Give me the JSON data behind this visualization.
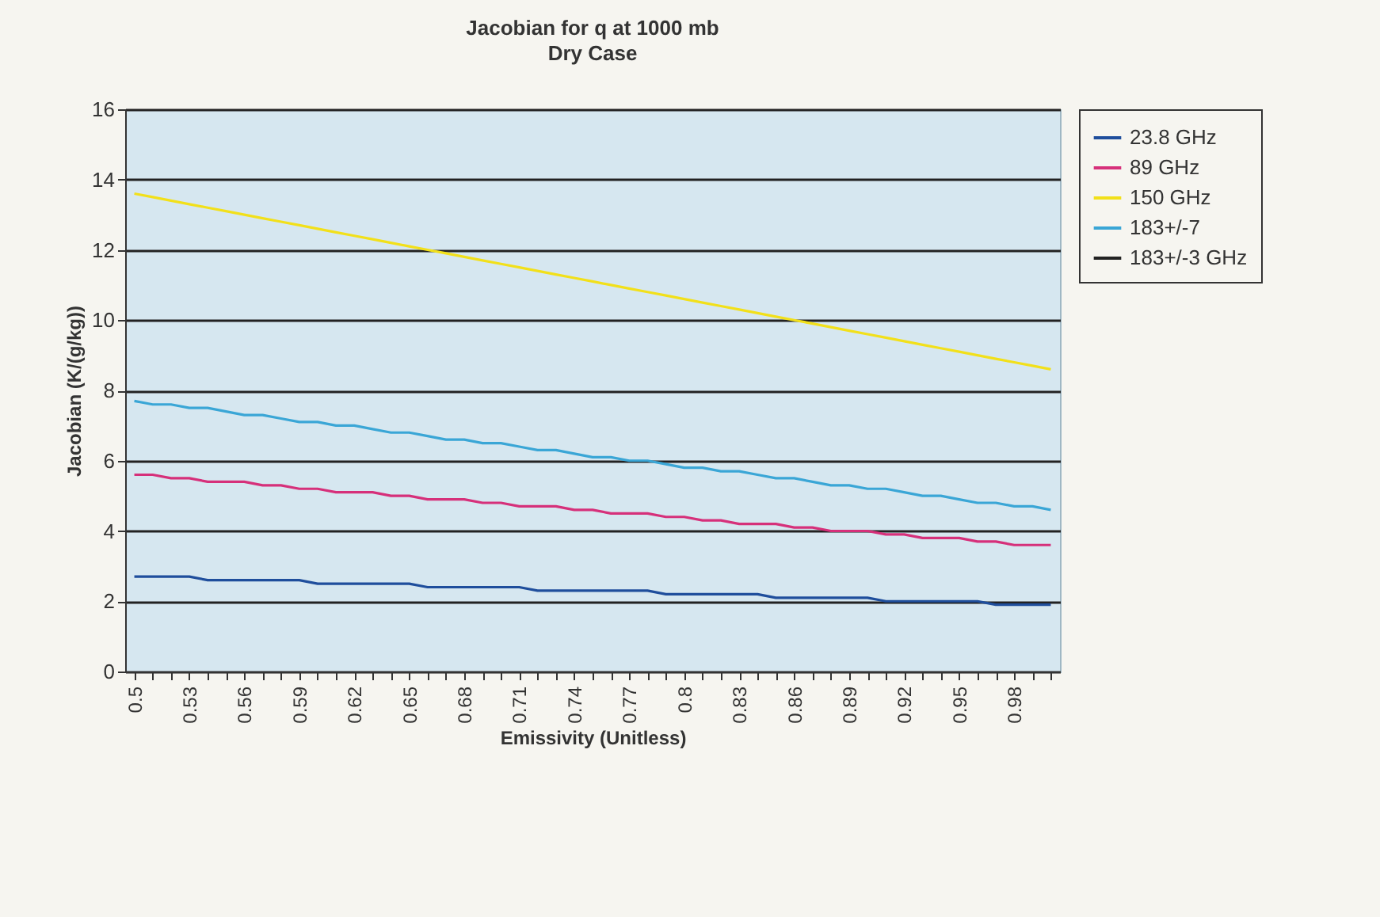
{
  "chart_data": {
    "type": "line",
    "title": "Jacobian for q at 1000 mb",
    "subtitle": "Dry Case",
    "xlabel": "Emissivity (Unitless)",
    "ylabel": "Jacobian (K/(g/kg))",
    "categories": [
      "0.5",
      null,
      null,
      "0.53",
      null,
      null,
      "0.56",
      null,
      null,
      "0.59",
      null,
      null,
      "0.62",
      null,
      null,
      "0.65",
      null,
      null,
      "0.68",
      null,
      null,
      "0.71",
      null,
      null,
      "0.74",
      null,
      null,
      "0.77",
      null,
      null,
      "0.8",
      null,
      null,
      "0.83",
      null,
      null,
      "0.86",
      null,
      null,
      "0.89",
      null,
      null,
      "0.92",
      null,
      null,
      "0.95",
      null,
      null,
      "0.98",
      null,
      null
    ],
    "series": [
      {
        "name": "23.8 GHz",
        "color": "#1f4e9c",
        "values": [
          2.7,
          2.7,
          2.7,
          2.7,
          2.6,
          2.6,
          2.6,
          2.6,
          2.6,
          2.6,
          2.5,
          2.5,
          2.5,
          2.5,
          2.5,
          2.5,
          2.4,
          2.4,
          2.4,
          2.4,
          2.4,
          2.4,
          2.3,
          2.3,
          2.3,
          2.3,
          2.3,
          2.3,
          2.3,
          2.2,
          2.2,
          2.2,
          2.2,
          2.2,
          2.2,
          2.1,
          2.1,
          2.1,
          2.1,
          2.1,
          2.1,
          2.0,
          2.0,
          2.0,
          2.0,
          2.0,
          2.0,
          1.9,
          1.9,
          1.9,
          1.9
        ]
      },
      {
        "name": "89 GHz",
        "color": "#d6307a",
        "values": [
          5.6,
          5.6,
          5.5,
          5.5,
          5.4,
          5.4,
          5.4,
          5.3,
          5.3,
          5.2,
          5.2,
          5.1,
          5.1,
          5.1,
          5.0,
          5.0,
          4.9,
          4.9,
          4.9,
          4.8,
          4.8,
          4.7,
          4.7,
          4.7,
          4.6,
          4.6,
          4.5,
          4.5,
          4.5,
          4.4,
          4.4,
          4.3,
          4.3,
          4.2,
          4.2,
          4.2,
          4.1,
          4.1,
          4.0,
          4.0,
          4.0,
          3.9,
          3.9,
          3.8,
          3.8,
          3.8,
          3.7,
          3.7,
          3.6,
          3.6,
          3.6
        ]
      },
      {
        "name": "150 GHz",
        "color": "#f2e01a",
        "values": [
          13.6,
          13.5,
          13.4,
          13.3,
          13.2,
          13.1,
          13.0,
          12.9,
          12.8,
          12.7,
          12.6,
          12.5,
          12.4,
          12.3,
          12.2,
          12.1,
          12.0,
          11.9,
          11.8,
          11.7,
          11.6,
          11.5,
          11.4,
          11.3,
          11.2,
          11.1,
          11.0,
          10.9,
          10.8,
          10.7,
          10.6,
          10.5,
          10.4,
          10.3,
          10.2,
          10.1,
          10.0,
          9.9,
          9.8,
          9.7,
          9.6,
          9.5,
          9.4,
          9.3,
          9.2,
          9.1,
          9.0,
          8.9,
          8.8,
          8.7,
          8.6
        ]
      },
      {
        "name": "183+/-7",
        "color": "#3aa6d6",
        "values": [
          7.7,
          7.6,
          7.6,
          7.5,
          7.5,
          7.4,
          7.3,
          7.3,
          7.2,
          7.1,
          7.1,
          7.0,
          7.0,
          6.9,
          6.8,
          6.8,
          6.7,
          6.6,
          6.6,
          6.5,
          6.5,
          6.4,
          6.3,
          6.3,
          6.2,
          6.1,
          6.1,
          6.0,
          6.0,
          5.9,
          5.8,
          5.8,
          5.7,
          5.7,
          5.6,
          5.5,
          5.5,
          5.4,
          5.3,
          5.3,
          5.2,
          5.2,
          5.1,
          5.0,
          5.0,
          4.9,
          4.8,
          4.8,
          4.7,
          4.7,
          4.6
        ]
      },
      {
        "name": "183+/-3 GHz",
        "color": "#222222",
        "values": [
          null,
          null,
          null,
          null,
          null,
          null,
          null,
          null,
          null,
          null,
          null,
          null,
          null,
          null,
          null,
          null,
          null,
          null,
          null,
          null,
          null,
          null,
          null,
          null,
          null,
          null,
          null,
          null,
          null,
          null,
          null,
          null,
          null,
          null,
          null,
          null,
          null,
          null,
          null,
          null,
          null,
          null,
          null,
          null,
          null,
          null,
          null,
          null,
          null,
          null,
          null
        ]
      }
    ],
    "ylim": [
      0,
      16
    ],
    "yticks": [
      0,
      2,
      4,
      6,
      8,
      10,
      12,
      14,
      16
    ],
    "grid": "y",
    "legend": "right"
  }
}
